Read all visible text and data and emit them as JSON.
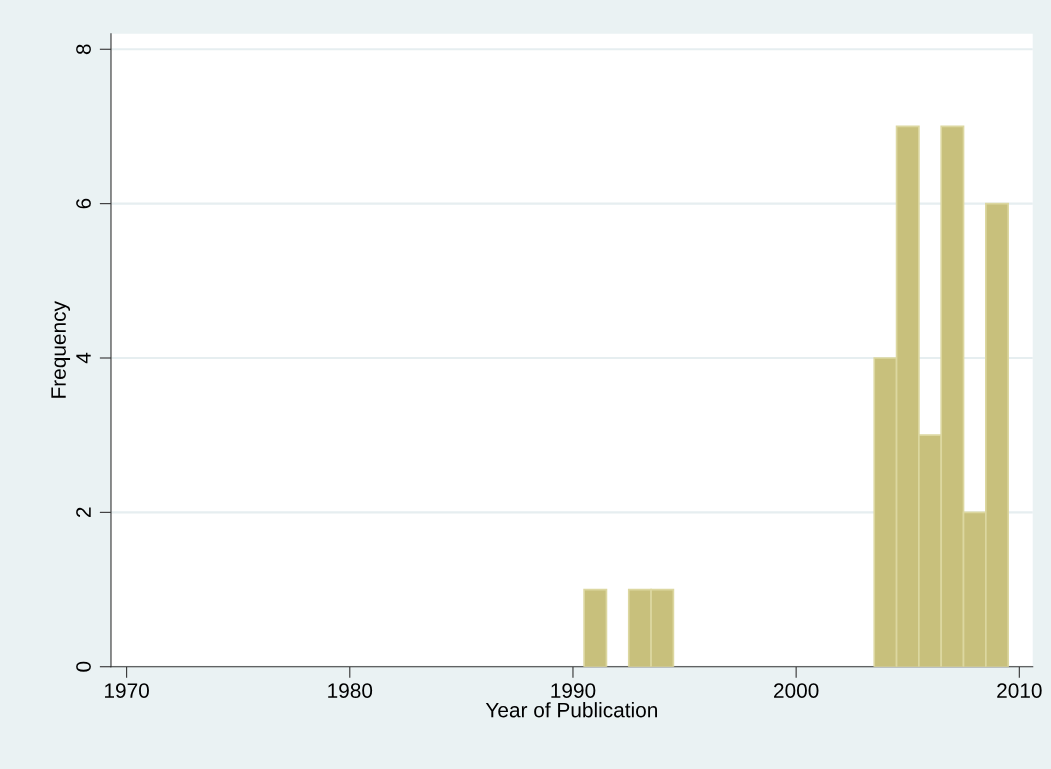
{
  "chart_data": {
    "type": "histogram",
    "xlabel": "Year of Publication",
    "ylabel": "Frequency",
    "bins": [
      1990.5,
      1991.5,
      1992.5,
      1993.5,
      1994.5,
      1995.5,
      1996.5,
      1997.5,
      1998.5,
      1999.5,
      2000.5,
      2001.5,
      2002.5,
      2003.5,
      2004.5,
      2005.5,
      2006.5,
      2007.5,
      2008.5,
      2009.5
    ],
    "values": [
      1,
      0,
      1,
      1,
      0,
      0,
      0,
      0,
      0,
      0,
      0,
      0,
      0,
      4,
      7,
      3,
      7,
      2,
      6
    ],
    "color": "#c8c07c",
    "xlim": [
      1969.3,
      2010.6
    ],
    "xticks": [
      1970,
      1980,
      1990,
      2000,
      2010
    ],
    "ylim": [
      0,
      8.2
    ],
    "yticks": [
      0,
      2,
      4,
      6,
      8
    ],
    "grid": "y"
  }
}
